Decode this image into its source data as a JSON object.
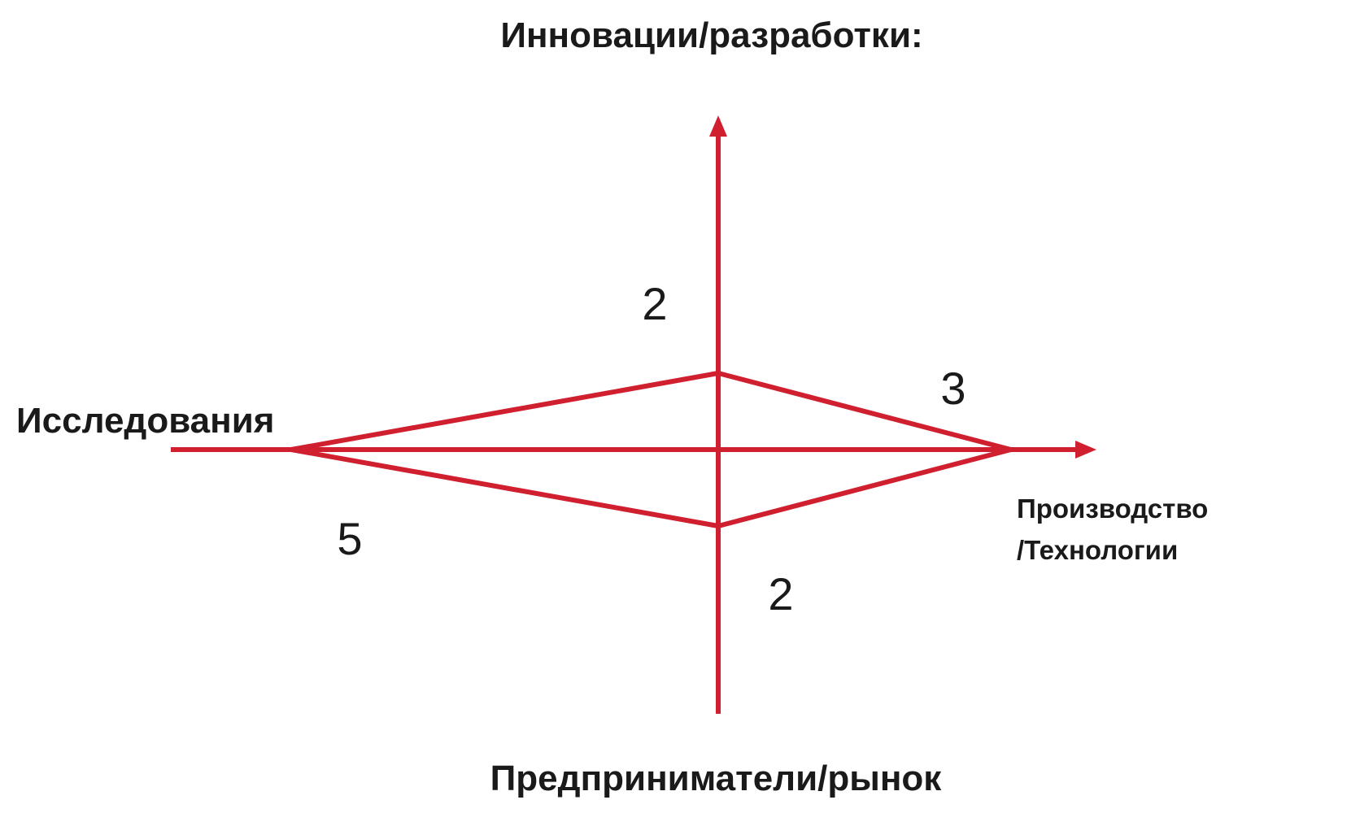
{
  "diagram": {
    "line_color": "#d01f2e",
    "axes": {
      "top_label": "Инновации/разработки:",
      "bottom_label": "Предприниматели/рынок",
      "left_label": "Исследования",
      "right_label_lines": [
        "Производство",
        "/Технологии"
      ]
    },
    "values": {
      "up": 2,
      "right": 3,
      "down": 2,
      "left": 5
    },
    "value_labels": {
      "up": "2",
      "right": "3",
      "down": "2",
      "left": "5"
    }
  }
}
